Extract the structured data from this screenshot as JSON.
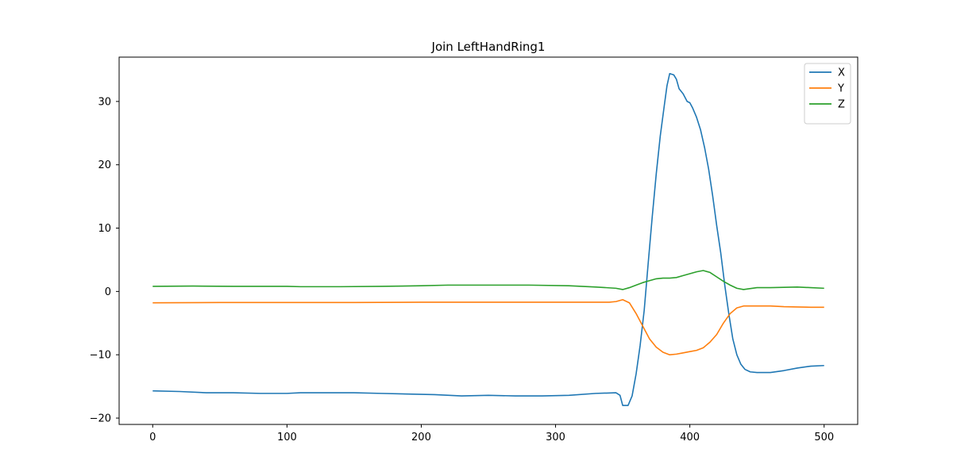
{
  "chart_data": {
    "type": "line",
    "title": "Join LeftHandRing1",
    "xlabel": "",
    "ylabel": "",
    "xlim": [
      -25,
      525
    ],
    "ylim": [
      -21,
      37
    ],
    "xticks": [
      0,
      100,
      200,
      300,
      400,
      500
    ],
    "yticks": [
      -20,
      -10,
      0,
      10,
      20,
      30
    ],
    "xtick_labels": [
      "0",
      "100",
      "200",
      "300",
      "400",
      "500"
    ],
    "ytick_labels": [
      "−20",
      "−10",
      "0",
      "10",
      "20",
      "30"
    ],
    "grid": false,
    "legend_position": "top-right",
    "series": [
      {
        "name": "X",
        "color": "#1f77b4",
        "points": [
          [
            0,
            -15.7
          ],
          [
            20,
            -15.8
          ],
          [
            40,
            -16.0
          ],
          [
            60,
            -16.0
          ],
          [
            80,
            -16.1
          ],
          [
            100,
            -16.1
          ],
          [
            110,
            -16.0
          ],
          [
            130,
            -16.0
          ],
          [
            150,
            -16.0
          ],
          [
            170,
            -16.1
          ],
          [
            190,
            -16.2
          ],
          [
            210,
            -16.3
          ],
          [
            230,
            -16.5
          ],
          [
            250,
            -16.4
          ],
          [
            270,
            -16.5
          ],
          [
            290,
            -16.5
          ],
          [
            310,
            -16.4
          ],
          [
            330,
            -16.1
          ],
          [
            345,
            -16.0
          ],
          [
            348,
            -16.4
          ],
          [
            350,
            -18.0
          ],
          [
            354,
            -18.0
          ],
          [
            357,
            -16.5
          ],
          [
            360,
            -13.0
          ],
          [
            363,
            -8.5
          ],
          [
            366,
            -3.0
          ],
          [
            369,
            4.5
          ],
          [
            372,
            11.8
          ],
          [
            375,
            18.6
          ],
          [
            378,
            24.6
          ],
          [
            381,
            29.4
          ],
          [
            383,
            32.5
          ],
          [
            385,
            34.4
          ],
          [
            388,
            34.2
          ],
          [
            390,
            33.5
          ],
          [
            392,
            32.0
          ],
          [
            395,
            31.2
          ],
          [
            398,
            30.0
          ],
          [
            400,
            29.8
          ],
          [
            402,
            29.0
          ],
          [
            405,
            27.5
          ],
          [
            408,
            25.5
          ],
          [
            411,
            22.7
          ],
          [
            414,
            19.3
          ],
          [
            417,
            15.1
          ],
          [
            420,
            10.4
          ],
          [
            423,
            6.1
          ],
          [
            426,
            1.0
          ],
          [
            429,
            -3.5
          ],
          [
            432,
            -7.5
          ],
          [
            435,
            -10.0
          ],
          [
            438,
            -11.5
          ],
          [
            441,
            -12.3
          ],
          [
            445,
            -12.7
          ],
          [
            450,
            -12.8
          ],
          [
            460,
            -12.8
          ],
          [
            470,
            -12.5
          ],
          [
            480,
            -12.1
          ],
          [
            490,
            -11.8
          ],
          [
            500,
            -11.7
          ]
        ]
      },
      {
        "name": "Y",
        "color": "#ff7f0e",
        "points": [
          [
            0,
            -1.8
          ],
          [
            50,
            -1.75
          ],
          [
            100,
            -1.75
          ],
          [
            150,
            -1.75
          ],
          [
            200,
            -1.7
          ],
          [
            250,
            -1.7
          ],
          [
            300,
            -1.7
          ],
          [
            340,
            -1.7
          ],
          [
            345,
            -1.6
          ],
          [
            350,
            -1.3
          ],
          [
            355,
            -1.8
          ],
          [
            360,
            -3.5
          ],
          [
            365,
            -5.5
          ],
          [
            370,
            -7.5
          ],
          [
            375,
            -8.8
          ],
          [
            380,
            -9.6
          ],
          [
            385,
            -10.0
          ],
          [
            390,
            -9.9
          ],
          [
            395,
            -9.7
          ],
          [
            400,
            -9.5
          ],
          [
            405,
            -9.3
          ],
          [
            410,
            -8.9
          ],
          [
            415,
            -8.0
          ],
          [
            420,
            -6.8
          ],
          [
            425,
            -5.0
          ],
          [
            430,
            -3.5
          ],
          [
            435,
            -2.6
          ],
          [
            440,
            -2.3
          ],
          [
            450,
            -2.3
          ],
          [
            460,
            -2.3
          ],
          [
            470,
            -2.4
          ],
          [
            480,
            -2.45
          ],
          [
            490,
            -2.5
          ],
          [
            500,
            -2.5
          ]
        ]
      },
      {
        "name": "Z",
        "color": "#2ca02c",
        "points": [
          [
            0,
            0.8
          ],
          [
            30,
            0.85
          ],
          [
            60,
            0.8
          ],
          [
            100,
            0.8
          ],
          [
            110,
            0.75
          ],
          [
            140,
            0.75
          ],
          [
            170,
            0.8
          ],
          [
            200,
            0.9
          ],
          [
            220,
            1.0
          ],
          [
            250,
            1.0
          ],
          [
            280,
            1.0
          ],
          [
            310,
            0.9
          ],
          [
            330,
            0.7
          ],
          [
            345,
            0.5
          ],
          [
            350,
            0.3
          ],
          [
            355,
            0.6
          ],
          [
            360,
            1.0
          ],
          [
            365,
            1.4
          ],
          [
            370,
            1.7
          ],
          [
            375,
            2.0
          ],
          [
            380,
            2.1
          ],
          [
            385,
            2.1
          ],
          [
            390,
            2.2
          ],
          [
            395,
            2.5
          ],
          [
            400,
            2.8
          ],
          [
            405,
            3.1
          ],
          [
            410,
            3.3
          ],
          [
            415,
            3.0
          ],
          [
            420,
            2.3
          ],
          [
            425,
            1.6
          ],
          [
            430,
            1.0
          ],
          [
            435,
            0.5
          ],
          [
            440,
            0.3
          ],
          [
            450,
            0.6
          ],
          [
            460,
            0.6
          ],
          [
            470,
            0.65
          ],
          [
            480,
            0.7
          ],
          [
            490,
            0.6
          ],
          [
            500,
            0.5
          ]
        ]
      }
    ]
  }
}
